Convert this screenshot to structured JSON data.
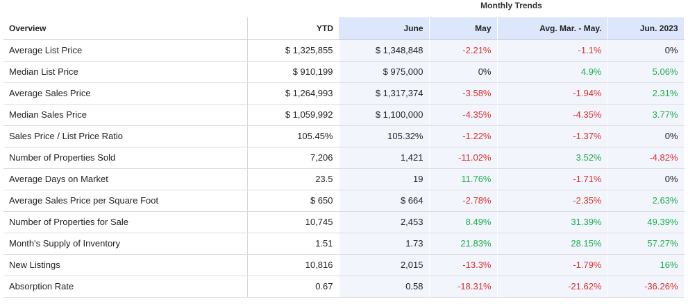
{
  "monthly_trends_title": "Monthly Trends",
  "headers": {
    "overview": "Overview",
    "ytd": "YTD",
    "june": "June",
    "may": "May",
    "avg": "Avg. Mar. - May.",
    "jun2023": "Jun. 2023"
  },
  "colors": {
    "negative": "#d9312b",
    "positive": "#1bae4a",
    "trend_header_bg": "#dde7fb",
    "trend_cell_bg": "#f3f5fd"
  },
  "rows": [
    {
      "label": "Average List Price",
      "ytd": "$ 1,325,855",
      "june": "$ 1,348,848",
      "may": "-2.21%",
      "avg": "-1.1%",
      "jun2023": "0%"
    },
    {
      "label": "Median List Price",
      "ytd": "$ 910,199",
      "june": "$ 975,000",
      "may": "0%",
      "avg": "4.9%",
      "jun2023": "5.06%"
    },
    {
      "label": "Average Sales Price",
      "ytd": "$ 1,264,993",
      "june": "$ 1,317,374",
      "may": "-3.58%",
      "avg": "-1.94%",
      "jun2023": "2.31%"
    },
    {
      "label": "Median Sales Price",
      "ytd": "$ 1,059,992",
      "june": "$ 1,100,000",
      "may": "-4.35%",
      "avg": "-4.35%",
      "jun2023": "3.77%"
    },
    {
      "label": "Sales Price / List Price Ratio",
      "ytd": "105.45%",
      "june": "105.32%",
      "may": "-1.22%",
      "avg": "-1.37%",
      "jun2023": "0%"
    },
    {
      "label": "Number of Properties Sold",
      "ytd": "7,206",
      "june": "1,421",
      "may": "-11.02%",
      "avg": "3.52%",
      "jun2023": "-4.82%"
    },
    {
      "label": "Average Days on Market",
      "ytd": "23.5",
      "june": "19",
      "may": "11.76%",
      "avg": "-1.71%",
      "jun2023": "0%"
    },
    {
      "label": "Average Sales Price per Square Foot",
      "ytd": "$ 650",
      "june": "$ 664",
      "may": "-2.78%",
      "avg": "-2.35%",
      "jun2023": "2.63%"
    },
    {
      "label": "Number of Properties for Sale",
      "ytd": "10,745",
      "june": "2,453",
      "may": "8.49%",
      "avg": "31.39%",
      "jun2023": "49.39%"
    },
    {
      "label": "Month's Supply of Inventory",
      "ytd": "1.51",
      "june": "1.73",
      "may": "21.83%",
      "avg": "28.15%",
      "jun2023": "57.27%"
    },
    {
      "label": "New Listings",
      "ytd": "10,816",
      "june": "2,015",
      "may": "-13.3%",
      "avg": "-1.79%",
      "jun2023": "16%"
    },
    {
      "label": "Absorption Rate",
      "ytd": "0.67",
      "june": "0.58",
      "may": "-18.31%",
      "avg": "-21.62%",
      "jun2023": "-36.26%"
    }
  ]
}
